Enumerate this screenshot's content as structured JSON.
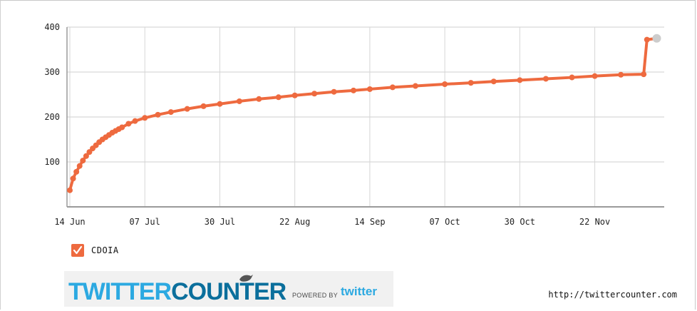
{
  "chart_data": {
    "type": "line",
    "x_tick_labels": [
      "14 Jun",
      "07 Jul",
      "30 Jul",
      "22 Aug",
      "14 Sep",
      "07 Oct",
      "30 Oct",
      "22 Nov"
    ],
    "y_tick_labels": [
      "400",
      "300",
      "200",
      "100"
    ],
    "ylim": [
      0,
      400
    ],
    "grid": true,
    "legend_placement": "bottom-left",
    "series": [
      {
        "name": "CDOIA",
        "color": "#ee6a3f",
        "x": [
          "14 Jun",
          "15 Jun",
          "16 Jun",
          "17 Jun",
          "18 Jun",
          "19 Jun",
          "20 Jun",
          "21 Jun",
          "22 Jun",
          "23 Jun",
          "24 Jun",
          "25 Jun",
          "26 Jun",
          "27 Jun",
          "28 Jun",
          "29 Jun",
          "30 Jun",
          "02 Jul",
          "04 Jul",
          "07 Jul",
          "11 Jul",
          "15 Jul",
          "20 Jul",
          "25 Jul",
          "30 Jul",
          "05 Aug",
          "11 Aug",
          "17 Aug",
          "22 Aug",
          "28 Aug",
          "03 Sep",
          "09 Sep",
          "14 Sep",
          "21 Sep",
          "28 Sep",
          "07 Oct",
          "15 Oct",
          "22 Oct",
          "30 Oct",
          "07 Nov",
          "15 Nov",
          "22 Nov",
          "30 Nov",
          "07 Dec",
          "08 Dec",
          "11 Dec"
        ],
        "values": [
          37,
          63,
          78,
          91,
          103,
          113,
          122,
          130,
          137,
          144,
          150,
          155,
          160,
          165,
          169,
          173,
          177,
          185,
          191,
          198,
          205,
          211,
          218,
          224,
          229,
          235,
          240,
          244,
          248,
          252,
          256,
          259,
          262,
          266,
          269,
          273,
          276,
          279,
          282,
          285,
          288,
          291,
          294,
          295,
          372,
          375
        ]
      }
    ],
    "last_point_color": "#cccccc"
  },
  "legend": {
    "label": "CDOIA",
    "checked_color": "#ee6a3f"
  },
  "branding": {
    "logo_part1": "TWITTER",
    "logo_part2": "COUNTER",
    "powered_by": "POWERED BY",
    "powered_brand": "twitter",
    "url": "http://twittercounter.com"
  }
}
